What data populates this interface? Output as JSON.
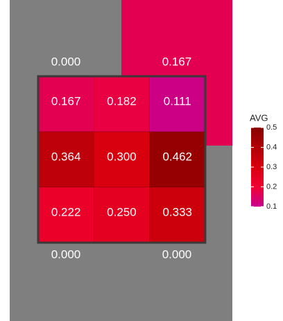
{
  "chart_data": {
    "type": "heatmap",
    "values": [
      [
        0.167,
        0.182,
        0.111
      ],
      [
        0.364,
        0.3,
        0.462
      ],
      [
        0.222,
        0.25,
        0.333
      ]
    ],
    "value_labels": [
      [
        "0.167",
        "0.182",
        "0.111"
      ],
      [
        "0.364",
        "0.300",
        "0.462"
      ],
      [
        "0.222",
        "0.250",
        "0.333"
      ]
    ],
    "outer_values": [
      0,
      0.167,
      0,
      0
    ],
    "outer_value_labels": [
      "0.000",
      "0.167",
      "0.000",
      "0.000"
    ],
    "low_color": "#7f7f7f",
    "colorbar": {
      "title": "AVG",
      "lim": [
        0.1,
        0.5
      ],
      "ticks": [
        0.1,
        0.2,
        0.3,
        0.4,
        0.5
      ],
      "stops": [
        {
          "value": 0.1,
          "color": "#c8008f"
        },
        {
          "value": 0.2,
          "color": "#f00032"
        },
        {
          "value": 0.3,
          "color": "#d8000e"
        },
        {
          "value": 0.5,
          "color": "#880000"
        }
      ]
    }
  }
}
